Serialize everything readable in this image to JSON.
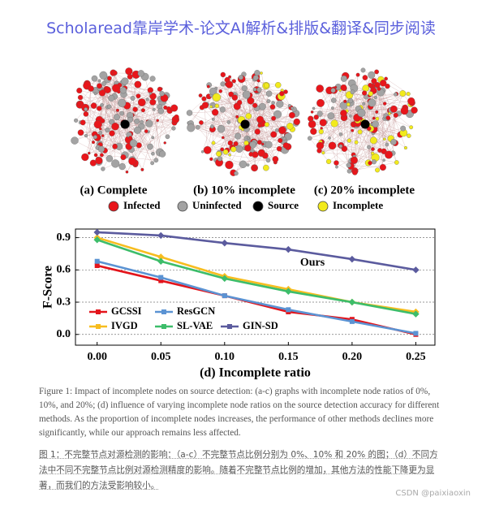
{
  "header": {
    "title": "Scholaread靠岸学术-论文AI解析&排版&翻译&同步阅读"
  },
  "figure": {
    "panels": [
      "(a) Complete",
      "(b) 10% incomplete",
      "(c) 20% incomplete"
    ],
    "node_legend": [
      {
        "label": "Infected",
        "color": "#e8161b"
      },
      {
        "label": "Uninfected",
        "color": "#a3a3a3"
      },
      {
        "label": "Source",
        "color": "#000000"
      },
      {
        "label": "Incomplete",
        "color": "#f2ea1c"
      }
    ]
  },
  "chart_data": {
    "type": "line",
    "x_label": "(d) Incomplete ratio",
    "y_label": "F-Score",
    "annotations": [
      "Ours"
    ],
    "x": [
      0,
      0.05,
      0.1,
      0.15,
      0.2,
      0.25
    ],
    "xlim": [
      -0.017,
      0.265
    ],
    "xticks": [
      {
        "value": 0,
        "label": "0.00"
      },
      {
        "value": 0.05,
        "label": "0.05"
      },
      {
        "value": 0.1,
        "label": "0.10"
      },
      {
        "value": 0.15,
        "label": "0.15"
      },
      {
        "value": 0.2,
        "label": "0.20"
      },
      {
        "value": 0.25,
        "label": "0.25"
      }
    ],
    "ylim": [
      -0.1,
      0.98
    ],
    "yticks": [
      {
        "value": 0,
        "label": "0.0"
      },
      0.3,
      0.6,
      0.9
    ],
    "grid": true,
    "series": [
      {
        "name": "GCSSI",
        "color": "#e3141b",
        "values": [
          0.64,
          0.5,
          0.36,
          0.21,
          0.14,
          0.0
        ]
      },
      {
        "name": "ResGCN",
        "color": "#5b93d3",
        "values": [
          0.68,
          0.53,
          0.36,
          0.23,
          0.12,
          0.01
        ]
      },
      {
        "name": "IVGD",
        "color": "#f7bd1f",
        "values": [
          0.9,
          0.72,
          0.54,
          0.42,
          0.3,
          0.21
        ]
      },
      {
        "name": "SL-VAE",
        "color": "#3dbd6a",
        "values": [
          0.88,
          0.68,
          0.52,
          0.4,
          0.3,
          0.19
        ]
      },
      {
        "name": "GIN-SD",
        "color": "#5b5b9e",
        "values": [
          0.95,
          0.92,
          0.85,
          0.79,
          0.7,
          0.6
        ]
      }
    ]
  },
  "caption": {
    "english": "Figure 1: Impact of incomplete nodes on source detection: (a-c) graphs with incomplete node ratios of 0%, 10%, and 20%; (d) influence of varying incomplete node ratios on the source detection accuracy for different methods. As the proportion of incomplete nodes increases, the performance of other methods declines more significantly, while our approach remains less affected.",
    "chinese": "图 1：不完整节点对源检测的影响：（a-c）不完整节点比例分别为 0%、10% 和 20% 的图；（d）不同方法中不同不完整节点比例对源检测精度的影响。随着不完整节点比例的增加，其他方法的性能下降更为显著，而我们的方法受影响较小。"
  },
  "watermark": "CSDN @paixiaoxin"
}
